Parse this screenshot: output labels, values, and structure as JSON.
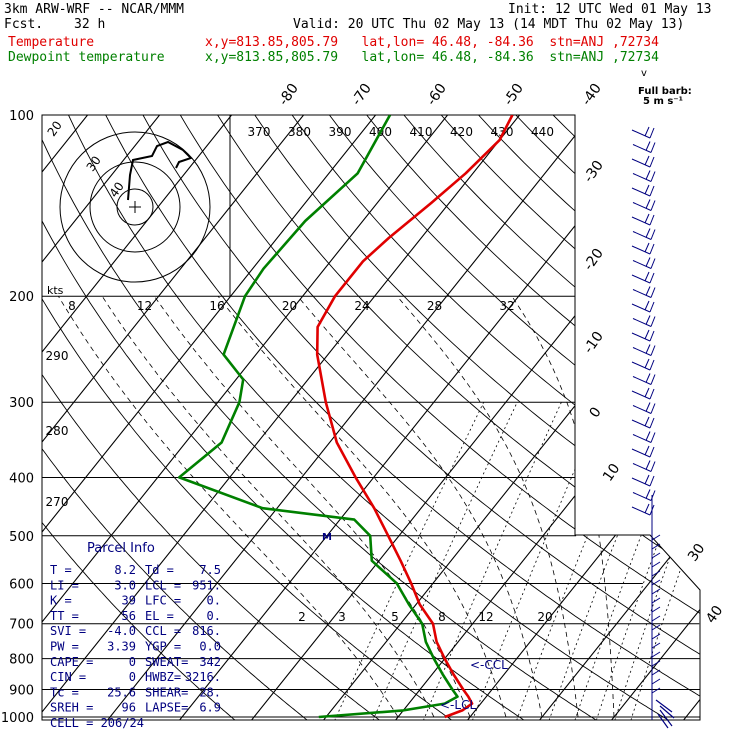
{
  "header": {
    "model": "3km ARW-WRF -- NCAR/MMM",
    "fcst_label": "Fcst.",
    "fcst_value": "32 h",
    "init": "Init: 12 UTC Wed 01 May 13",
    "valid": "Valid: 20 UTC Thu 02 May 13 (14 MDT Thu 02 May 13)",
    "temp_label": "Temperature",
    "temp_info": "x,y=813.85,805.79   lat,lon= 46.48, -84.36  stn=ANJ ,72734",
    "dew_label": "Dewpoint temperature",
    "dew_info": "x,y=813.85,805.79   lat,lon= 46.48, -84.36  stn=ANJ ,72734",
    "full_barb_title": "Full barb:",
    "full_barb_value": "5 m s⁻¹"
  },
  "colors": {
    "temperature": "#e00000",
    "dewpoint": "#008000",
    "parcel": "#000080",
    "wind": "#000080"
  },
  "chart_data": {
    "type": "line",
    "pressure_ticks": [
      "100",
      "200",
      "300",
      "400",
      "500",
      "600",
      "700",
      "800",
      "900",
      "1000"
    ],
    "temp_ticks_top": [
      "-80",
      "-70",
      "-60",
      "-50",
      "-40"
    ],
    "temp_ticks_right": [
      "-30",
      "-20",
      "-10",
      "0",
      "10"
    ],
    "theta_labels": [
      "370",
      "380",
      "390",
      "400",
      "410",
      "420",
      "430",
      "440"
    ],
    "left_theta_labels": [
      "290",
      "280",
      "270"
    ],
    "mixing_ratio_upper": [
      "8",
      "12",
      "16",
      "20",
      "24",
      "28",
      "32"
    ],
    "mixing_ratio_lower": [
      "2",
      "3",
      "5",
      "8",
      "12",
      "20"
    ],
    "side_labels": [
      "30",
      "40"
    ],
    "hodograph": {
      "rings": [
        "20",
        "30",
        "40"
      ],
      "unit": "kts"
    },
    "temperature": [
      [
        1000,
        6.5
      ],
      [
        975,
        8.2
      ],
      [
        950,
        8.8
      ],
      [
        925,
        7.5
      ],
      [
        900,
        6.0
      ],
      [
        850,
        3.0
      ],
      [
        800,
        0.0
      ],
      [
        750,
        -3.0
      ],
      [
        700,
        -5.5
      ],
      [
        650,
        -9.5
      ],
      [
        600,
        -13.0
      ],
      [
        550,
        -17.0
      ],
      [
        500,
        -21.5
      ],
      [
        450,
        -26.5
      ],
      [
        400,
        -32.5
      ],
      [
        350,
        -39.0
      ],
      [
        300,
        -45.0
      ],
      [
        250,
        -51.5
      ],
      [
        225,
        -54.5
      ],
      [
        200,
        -55.5
      ],
      [
        175,
        -55.5
      ],
      [
        160,
        -54.5
      ],
      [
        140,
        -52.5
      ],
      [
        125,
        -51.0
      ],
      [
        110,
        -50.0
      ],
      [
        100,
        -51.0
      ]
    ],
    "dewpoint": [
      [
        1000,
        -11.0
      ],
      [
        975,
        0.0
      ],
      [
        950,
        5.0
      ],
      [
        925,
        6.0
      ],
      [
        900,
        4.5
      ],
      [
        850,
        1.5
      ],
      [
        800,
        -1.5
      ],
      [
        750,
        -4.5
      ],
      [
        700,
        -7.0
      ],
      [
        650,
        -11.0
      ],
      [
        600,
        -15.0
      ],
      [
        550,
        -21.0
      ],
      [
        500,
        -24.0
      ],
      [
        470,
        -28.0
      ],
      [
        450,
        -42.0
      ],
      [
        400,
        -57.0
      ],
      [
        350,
        -55.0
      ],
      [
        300,
        -57.0
      ],
      [
        275,
        -59.0
      ],
      [
        250,
        -64.5
      ],
      [
        200,
        -68.0
      ],
      [
        180,
        -68.5
      ],
      [
        150,
        -68.0
      ],
      [
        125,
        -66.0
      ],
      [
        100,
        -68.0
      ]
    ],
    "annotations": {
      "ccl": "<-CCL",
      "lcl": "<-LCL"
    }
  },
  "parcel_info": {
    "title": "Parcel Info",
    "rows": [
      {
        "k1": "T  =",
        "v1": "8.2",
        "k2": "Td  =",
        "v2": "7.5"
      },
      {
        "k1": "LI =",
        "v1": "3.0",
        "k2": "LCL =",
        "v2": "951."
      },
      {
        "k1": "K  =",
        "v1": "39",
        "k2": "LFC =",
        "v2": "0."
      },
      {
        "k1": "TT =",
        "v1": "56",
        "k2": "EL  =",
        "v2": "0."
      },
      {
        "k1": "SVI =",
        "v1": "-4.0",
        "k2": "CCL =",
        "v2": "816."
      },
      {
        "k1": "PW =",
        "v1": "3.39",
        "k2": "YGP =",
        "v2": "0.0"
      },
      {
        "k1": "CAPE =",
        "v1": "0",
        "k2": "SWEAT=",
        "v2": "342"
      },
      {
        "k1": "CIN =",
        "v1": "0",
        "k2": "HWBZ=",
        "v2": "3216."
      },
      {
        "k1": "Tc =",
        "v1": "25.6",
        "k2": "SHEAR=",
        "v2": "28."
      },
      {
        "k1": "SREH =",
        "v1": "96",
        "k2": "LAPSE=",
        "v2": "6.9"
      }
    ],
    "cell": "CELL = 206/24"
  }
}
